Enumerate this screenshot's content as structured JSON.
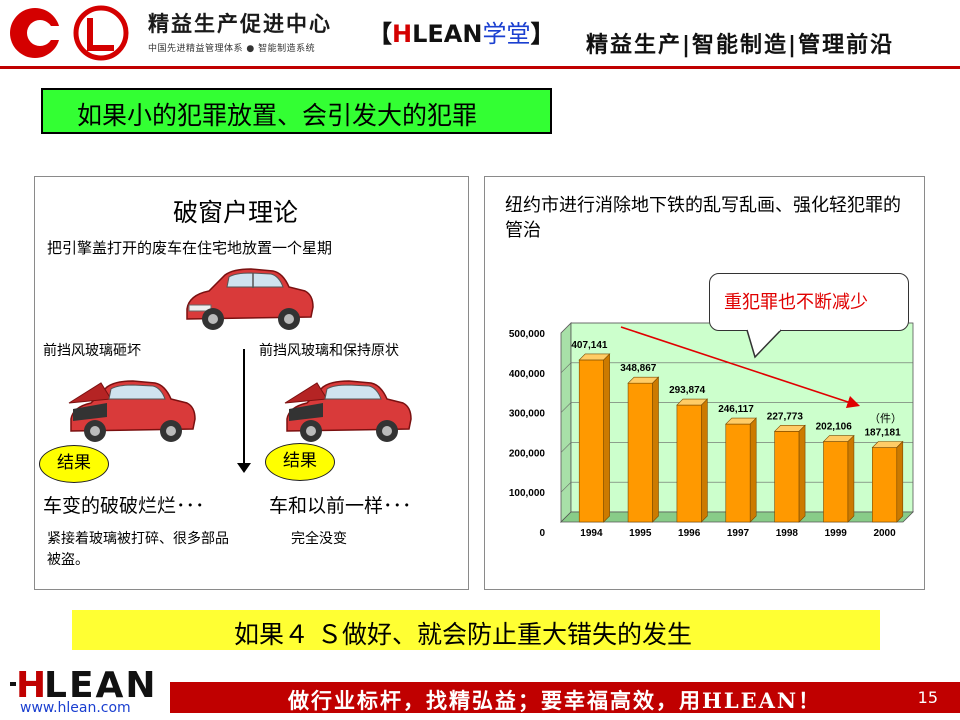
{
  "header": {
    "brand_cn": "精益生产促进中心",
    "brand_sub": "中国先进精益管理体系 ● 智能制造系统",
    "center_open": "【",
    "center_h": "H",
    "center_lean": "LEAN",
    "center_xt": "学堂",
    "center_close": "】",
    "right": "精益生产|智能制造|管理前沿"
  },
  "title": "如果小的犯罪放置、会引发大的犯罪",
  "left_panel": {
    "title": "破窗户理论",
    "subtitle": "把引擎盖打开的废车在住宅地放置一个星期",
    "left_label": "前挡风玻璃砸坏",
    "right_label": "前挡风玻璃和保持原状",
    "badge_left": "结果",
    "badge_right": "结果",
    "result_left": "车变的破破烂烂･･･",
    "result_right": "车和以前一样･･･",
    "note_left": "紧接着玻璃被打碎、很多部品被盗。",
    "note_right": "完全没变"
  },
  "right_panel": {
    "title": "纽约市进行消除地下铁的乱写乱画、强化轻犯罪的管治",
    "callout": "重犯罪也不断减少",
    "unit": "（件）"
  },
  "chart_data": {
    "type": "bar",
    "title": "",
    "xlabel": "",
    "ylabel": "",
    "categories": [
      "1994",
      "1995",
      "1996",
      "1997",
      "1998",
      "1999",
      "2000"
    ],
    "values": [
      407141,
      348867,
      293874,
      246117,
      227773,
      202106,
      187181
    ],
    "value_labels": [
      "407,141",
      "348,867",
      "293,874",
      "246,117",
      "227,773",
      "202,106",
      "187,181"
    ],
    "ylim": [
      0,
      500000
    ],
    "yticks": [
      0,
      100000,
      200000,
      300000,
      400000,
      500000
    ],
    "ytick_labels": [
      "0",
      "100,000",
      "200,000",
      "300,000",
      "400,000",
      "500,000"
    ],
    "grid": true,
    "bar_color": "#ff9900",
    "plot_bg": "#ccffcc"
  },
  "bottom": "如果４ Ｓ做好、就会防止重大错失的发生",
  "footer": {
    "url": "www.hlean.com",
    "slogan": "做行业标杆，找精弘益；要幸福高效，用HLEAN！",
    "page": "15"
  },
  "colors": {
    "accent_red": "#c00000",
    "title_green": "#33ff33",
    "highlight_yellow": "#ffff33"
  }
}
